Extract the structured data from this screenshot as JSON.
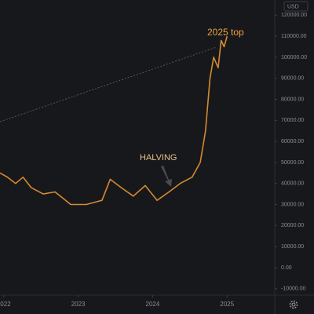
{
  "chart_data": {
    "type": "line",
    "currency": "USD",
    "annotations": [
      "2025 top",
      "HALVING"
    ],
    "x": [
      2021.95,
      2022.05,
      2022.16,
      2022.26,
      2022.37,
      2022.53,
      2022.69,
      2022.9,
      2023.11,
      2023.32,
      2023.43,
      2023.58,
      2023.74,
      2023.9,
      2024.06,
      2024.22,
      2024.37,
      2024.53,
      2024.64,
      2024.71,
      2024.77,
      2024.82,
      2024.88,
      2024.92,
      2024.96,
      2025.0
    ],
    "series": [
      {
        "color": "#d68a2e",
        "values": [
          45000,
          43000,
          40000,
          43000,
          38000,
          35000,
          36000,
          30000,
          30000,
          32000,
          42000,
          38000,
          34000,
          39000,
          32000,
          36000,
          40000,
          43000,
          50000,
          65000,
          90000,
          100000,
          95000,
          108000,
          105000,
          110000
        ]
      }
    ],
    "xlim": [
      2021.95,
      2025.64
    ],
    "xticks": [
      2022,
      2023,
      2024,
      2025
    ],
    "ylim": [
      -12700,
      127200
    ],
    "yticks": [
      {
        "value": 120000,
        "label": "120000.00"
      },
      {
        "value": 110000,
        "label": "110000.00"
      },
      {
        "value": 100000,
        "label": "100000.00"
      },
      {
        "value": 90000,
        "label": "90000.00"
      },
      {
        "value": 80000,
        "label": "80000.00"
      },
      {
        "value": 70000,
        "label": "70000.00"
      },
      {
        "value": 60000,
        "label": "60000.00"
      },
      {
        "value": 50000,
        "label": "50000.00"
      },
      {
        "value": 40000,
        "label": "40000.00"
      },
      {
        "value": 30000,
        "label": "30000.00"
      },
      {
        "value": 20000,
        "label": "20000.00"
      },
      {
        "value": 10000,
        "label": "10000.00"
      },
      {
        "value": 0,
        "label": "0.00"
      },
      {
        "value": -10000,
        "label": "-10000.00"
      }
    ]
  }
}
